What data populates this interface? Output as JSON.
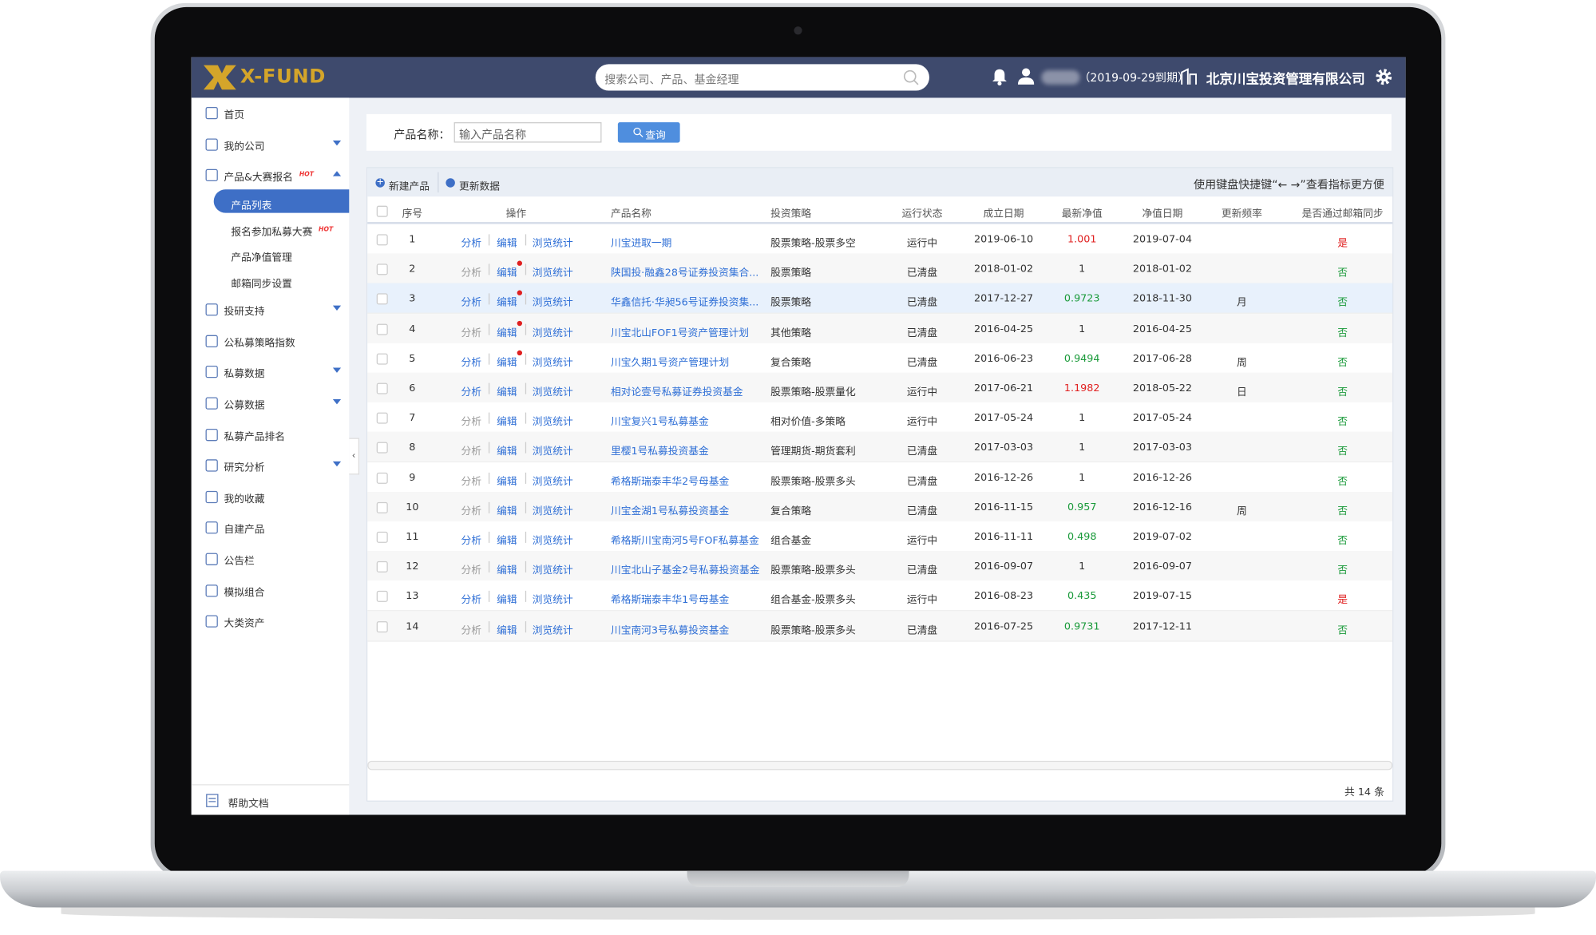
{
  "header": {
    "logo": "X-FUND",
    "search_placeholder": "搜索公司、产品、基金经理",
    "expiry": "（2019-09-29到期）",
    "company": "北京川宝投资管理有限公司"
  },
  "sidebar": {
    "items": [
      {
        "label": "首页"
      },
      {
        "label": "我的公司",
        "arrow": "down"
      },
      {
        "label": "产品&大赛报名",
        "badge": "HOT",
        "arrow": "up",
        "children": [
          {
            "label": "产品列表",
            "active": true
          },
          {
            "label": "报名参加私募大赛",
            "badge": "HOT"
          },
          {
            "label": "产品净值管理"
          },
          {
            "label": "邮箱同步设置"
          }
        ]
      },
      {
        "label": "投研支持",
        "arrow": "down"
      },
      {
        "label": "公私募策略指数"
      },
      {
        "label": "私募数据",
        "arrow": "down"
      },
      {
        "label": "公募数据",
        "arrow": "down"
      },
      {
        "label": "私募产品排名"
      },
      {
        "label": "研究分析",
        "arrow": "down"
      },
      {
        "label": "我的收藏"
      },
      {
        "label": "自建产品"
      },
      {
        "label": "公告栏"
      },
      {
        "label": "模拟组合"
      },
      {
        "label": "大类资产"
      }
    ],
    "help": "帮助文档"
  },
  "search": {
    "label": "产品名称：",
    "placeholder": "输入产品名称",
    "button": "查询"
  },
  "toolbar": {
    "new": "新建产品",
    "refresh": "更新数据",
    "hint": "使用键盘快捷键“← →”查看指标更方便"
  },
  "table": {
    "columns": [
      "序号",
      "操作",
      "产品名称",
      "投资策略",
      "运行状态",
      "成立日期",
      "最新净值",
      "净值日期",
      "更新频率",
      "是否通过邮箱同步"
    ],
    "actions": [
      "分析",
      "编辑",
      "浏览统计"
    ],
    "rows": [
      {
        "no": 1,
        "analysis": true,
        "name": "川宝进取一期",
        "strategy": "股票策略-股票多空",
        "status": "运行中",
        "founded": "2019-06-10",
        "nav": 1.001,
        "nav_date": "2019-07-04",
        "synced": "是"
      },
      {
        "no": 2,
        "analysis": false,
        "badge": true,
        "name": "陕国投·融鑫28号证券投资集合...",
        "strategy": "股票策略",
        "status": "已清盘",
        "founded": "2018-01-02",
        "nav": 1,
        "nav_date": "2018-01-02",
        "synced": "否"
      },
      {
        "no": 3,
        "analysis": true,
        "badge": true,
        "highlight": true,
        "name": "华鑫信托·华昶56号证券投资集...",
        "strategy": "股票策略",
        "status": "已清盘",
        "founded": "2017-12-27",
        "nav": 0.9723,
        "nav_date": "2018-11-30",
        "freq": "月",
        "synced": "否"
      },
      {
        "no": 4,
        "analysis": false,
        "badge": true,
        "name": "川宝北山FOF1号资产管理计划",
        "strategy": "其他策略",
        "status": "已清盘",
        "founded": "2016-04-25",
        "nav": 1,
        "nav_date": "2016-04-25",
        "synced": "否"
      },
      {
        "no": 5,
        "analysis": true,
        "badge": true,
        "name": "川宝久期1号资产管理计划",
        "strategy": "复合策略",
        "status": "已清盘",
        "founded": "2016-06-23",
        "nav": 0.9494,
        "nav_date": "2017-06-28",
        "freq": "周",
        "synced": "否"
      },
      {
        "no": 6,
        "analysis": true,
        "name": "相对论壹号私募证券投资基金",
        "strategy": "股票策略-股票量化",
        "status": "运行中",
        "founded": "2017-06-21",
        "nav": 1.1982,
        "nav_date": "2018-05-22",
        "freq": "日",
        "synced": "否"
      },
      {
        "no": 7,
        "analysis": false,
        "name": "川宝复兴1号私募基金",
        "strategy": "相对价值-多策略",
        "status": "运行中",
        "founded": "2017-05-24",
        "nav": 1,
        "nav_date": "2017-05-24",
        "synced": "否"
      },
      {
        "no": 8,
        "analysis": false,
        "name": "里樱1号私募投资基金",
        "strategy": "管理期货-期货套利",
        "status": "已清盘",
        "founded": "2017-03-03",
        "nav": 1,
        "nav_date": "2017-03-03",
        "synced": "否"
      },
      {
        "no": 9,
        "analysis": false,
        "name": "希格斯瑞泰丰华2号母基金",
        "strategy": "股票策略-股票多头",
        "status": "已清盘",
        "founded": "2016-12-26",
        "nav": 1,
        "nav_date": "2016-12-26",
        "synced": "否"
      },
      {
        "no": 10,
        "analysis": false,
        "name": "川宝金湖1号私募投资基金",
        "strategy": "复合策略",
        "status": "已清盘",
        "founded": "2016-11-15",
        "nav": 0.957,
        "nav_date": "2016-12-16",
        "freq": "周",
        "synced": "否"
      },
      {
        "no": 11,
        "analysis": true,
        "name": "希格斯川宝南河5号FOF私募基金",
        "strategy": "组合基金",
        "status": "运行中",
        "founded": "2016-11-11",
        "nav": 0.498,
        "nav_date": "2019-07-02",
        "synced": "否"
      },
      {
        "no": 12,
        "analysis": false,
        "name": "川宝北山子基金2号私募投资基金",
        "strategy": "股票策略-股票多头",
        "status": "已清盘",
        "founded": "2016-09-07",
        "nav": 1,
        "nav_date": "2016-09-07",
        "synced": "否"
      },
      {
        "no": 13,
        "analysis": true,
        "name": "希格斯瑞泰丰华1号母基金",
        "strategy": "组合基金-股票多头",
        "status": "运行中",
        "founded": "2016-08-23",
        "nav": 0.435,
        "nav_date": "2019-07-15",
        "synced": "是"
      },
      {
        "no": 14,
        "analysis": false,
        "name": "川宝南河3号私募投资基金",
        "strategy": "股票策略-股票多头",
        "status": "已清盘",
        "founded": "2016-07-25",
        "nav": 0.9731,
        "nav_date": "2017-12-11",
        "synced": "否"
      }
    ],
    "total": "共 14 条"
  }
}
